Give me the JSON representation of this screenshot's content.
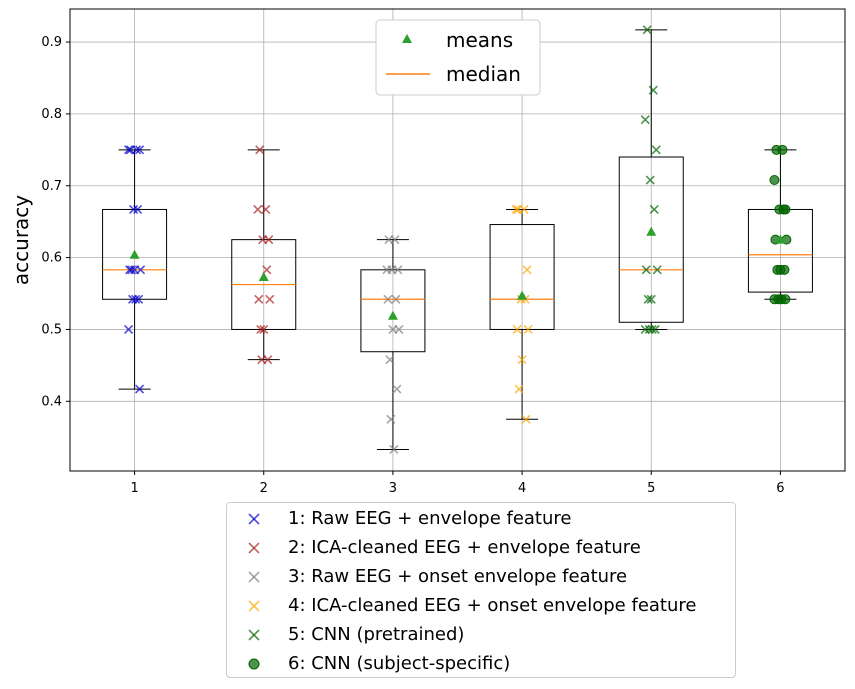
{
  "chart_data": {
    "type": "box",
    "title": "",
    "xlabel": "",
    "ylabel": "accuracy",
    "xlim": [
      0.5,
      6.5
    ],
    "ylim": [
      0.303,
      0.946
    ],
    "grid": true,
    "x_ticks": [
      "1",
      "2",
      "3",
      "4",
      "5",
      "6"
    ],
    "y_ticks": [
      "0.4",
      "0.5",
      "0.6",
      "0.7",
      "0.8",
      "0.9"
    ],
    "colors": {
      "box": "#000000",
      "median": "#ff7f0e",
      "mean": "#2ca02c",
      "grid": "#b0b0b0"
    },
    "inner_legend": {
      "placement": "top-center",
      "entries": [
        {
          "label": "means",
          "marker": "triangle",
          "color": "#2ca02c"
        },
        {
          "label": "median",
          "marker": "line",
          "color": "#ff7f0e"
        }
      ]
    },
    "series": [
      {
        "name": "1: Raw EEG + envelope feature",
        "position": 1,
        "marker": "x",
        "color": "#0000cc",
        "whisker_low": 0.417,
        "q1": 0.542,
        "median": 0.583,
        "q3": 0.667,
        "whisker_high": 0.75,
        "mean": 0.604,
        "points": [
          0.75,
          0.75,
          0.75,
          0.75,
          0.667,
          0.667,
          0.583,
          0.583,
          0.583,
          0.583,
          0.542,
          0.542,
          0.542,
          0.5,
          0.417
        ]
      },
      {
        "name": "2: ICA-cleaned EEG + envelope feature",
        "position": 2,
        "marker": "x",
        "color": "#aa2222",
        "whisker_low": 0.458,
        "q1": 0.5,
        "median": 0.5625,
        "q3": 0.625,
        "whisker_high": 0.75,
        "mean": 0.573,
        "points": [
          0.75,
          0.667,
          0.667,
          0.625,
          0.625,
          0.583,
          0.542,
          0.542,
          0.5,
          0.5,
          0.458,
          0.458
        ]
      },
      {
        "name": "3: Raw EEG + onset envelope feature",
        "position": 3,
        "marker": "x",
        "color": "#808080",
        "whisker_low": 0.333,
        "q1": 0.469,
        "median": 0.542,
        "q3": 0.583,
        "whisker_high": 0.625,
        "mean": 0.519,
        "points": [
          0.625,
          0.625,
          0.583,
          0.583,
          0.583,
          0.542,
          0.542,
          0.5,
          0.5,
          0.458,
          0.417,
          0.375,
          0.333
        ]
      },
      {
        "name": "4: ICA-cleaned EEG + onset envelope feature",
        "position": 4,
        "marker": "x",
        "color": "#ffa500",
        "whisker_low": 0.375,
        "q1": 0.5,
        "median": 0.542,
        "q3": 0.646,
        "whisker_high": 0.667,
        "mean": 0.547,
        "points": [
          0.667,
          0.667,
          0.667,
          0.583,
          0.542,
          0.542,
          0.5,
          0.5,
          0.458,
          0.417,
          0.375
        ]
      },
      {
        "name": "5: CNN (pretrained)",
        "position": 5,
        "marker": "x",
        "color": "#006400",
        "whisker_low": 0.5,
        "q1": 0.51,
        "median": 0.583,
        "q3": 0.74,
        "whisker_high": 0.917,
        "mean": 0.636,
        "points": [
          0.917,
          0.833,
          0.792,
          0.75,
          0.708,
          0.667,
          0.583,
          0.583,
          0.542,
          0.542,
          0.5,
          0.5,
          0.5,
          0.5
        ]
      },
      {
        "name": "6: CNN (subject-specific)",
        "position": 6,
        "marker": "circle",
        "color": "#006400",
        "whisker_low": 0.542,
        "q1": 0.552,
        "median": 0.604,
        "q3": 0.667,
        "whisker_high": 0.75,
        "mean": 0.625,
        "points": [
          0.75,
          0.75,
          0.708,
          0.667,
          0.667,
          0.667,
          0.625,
          0.625,
          0.583,
          0.583,
          0.583,
          0.542,
          0.542,
          0.542,
          0.542
        ]
      }
    ]
  }
}
